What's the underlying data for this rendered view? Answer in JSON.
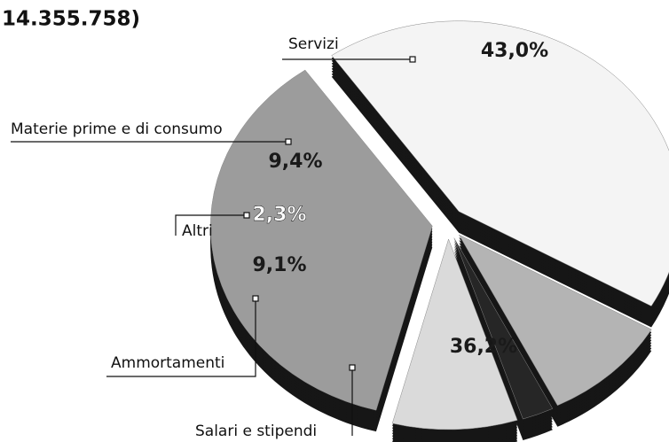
{
  "chart_data": {
    "type": "pie",
    "title": "14.355.758)",
    "categories": [
      "Servizi",
      "Materie prime e di consumo",
      "Altri",
      "Ammortamenti",
      "Salari e stipendi"
    ],
    "values": [
      43.0,
      9.4,
      2.3,
      9.1,
      36.2
    ],
    "value_labels": [
      "43,0%",
      "9,4%",
      "2,3%",
      "9,1%",
      "36,2%"
    ],
    "colors": [
      "#f4f4f4",
      "#b4b4b4",
      "#262626",
      "#dadada",
      "#9c9c9c"
    ]
  }
}
